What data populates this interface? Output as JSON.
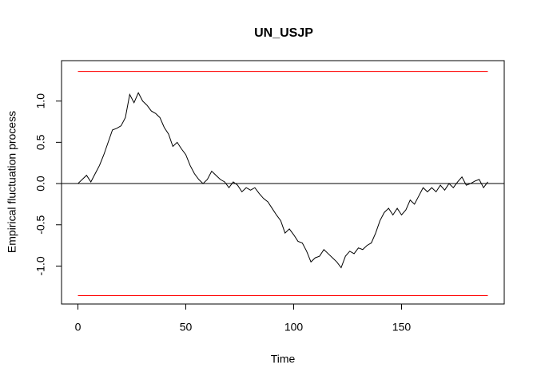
{
  "chart_data": {
    "type": "line",
    "title": "UN_USJP",
    "xlabel": "Time",
    "ylabel": "Empirical fluctuation process",
    "xlim": [
      -7.6,
      197.6
    ],
    "ylim": [
      -1.46,
      1.49
    ],
    "xticks": [
      0,
      50,
      100,
      150
    ],
    "yticks": [
      {
        "value": -1,
        "label": "-1.0"
      },
      {
        "value": -0.5,
        "label": "-0.5"
      },
      {
        "value": 0,
        "label": "0.0"
      },
      {
        "value": 0.5,
        "label": "0.5"
      },
      {
        "value": 1,
        "label": "1.0"
      }
    ],
    "boundary": 1.358,
    "boundary_color": "#ff0000",
    "hline": 0,
    "x": [
      0,
      2,
      4,
      6,
      8,
      10,
      12,
      14,
      16,
      18,
      20,
      22,
      24,
      26,
      28,
      30,
      32,
      34,
      36,
      38,
      40,
      42,
      44,
      46,
      48,
      50,
      52,
      54,
      56,
      58,
      60,
      62,
      64,
      66,
      68,
      70,
      72,
      74,
      76,
      78,
      80,
      82,
      84,
      86,
      88,
      90,
      92,
      94,
      96,
      98,
      100,
      102,
      104,
      106,
      108,
      110,
      112,
      114,
      116,
      118,
      120,
      122,
      124,
      126,
      128,
      130,
      132,
      134,
      136,
      138,
      140,
      142,
      144,
      146,
      148,
      150,
      152,
      154,
      156,
      158,
      160,
      162,
      164,
      166,
      168,
      170,
      172,
      174,
      176,
      178,
      180,
      182,
      184,
      186,
      188,
      190
    ],
    "series": [
      {
        "color": "#000000",
        "values": [
          0,
          0.05,
          0.1,
          0.02,
          0.12,
          0.22,
          0.35,
          0.5,
          0.65,
          0.67,
          0.7,
          0.8,
          1.08,
          0.98,
          1.1,
          1.0,
          0.95,
          0.88,
          0.85,
          0.8,
          0.68,
          0.6,
          0.45,
          0.5,
          0.42,
          0.35,
          0.22,
          0.12,
          0.05,
          0.0,
          0.05,
          0.15,
          0.1,
          0.05,
          0.02,
          -0.05,
          0.02,
          -0.02,
          -0.1,
          -0.05,
          -0.08,
          -0.05,
          -0.12,
          -0.18,
          -0.22,
          -0.3,
          -0.38,
          -0.45,
          -0.6,
          -0.55,
          -0.62,
          -0.7,
          -0.72,
          -0.82,
          -0.95,
          -0.9,
          -0.88,
          -0.8,
          -0.85,
          -0.9,
          -0.95,
          -1.02,
          -0.88,
          -0.82,
          -0.85,
          -0.78,
          -0.8,
          -0.75,
          -0.72,
          -0.6,
          -0.45,
          -0.35,
          -0.3,
          -0.38,
          -0.3,
          -0.38,
          -0.32,
          -0.2,
          -0.25,
          -0.15,
          -0.05,
          -0.1,
          -0.05,
          -0.1,
          -0.02,
          -0.08,
          0.0,
          -0.05,
          0.02,
          0.08,
          -0.02,
          0.0,
          0.03,
          0.05,
          -0.05,
          0.02
        ]
      }
    ]
  }
}
